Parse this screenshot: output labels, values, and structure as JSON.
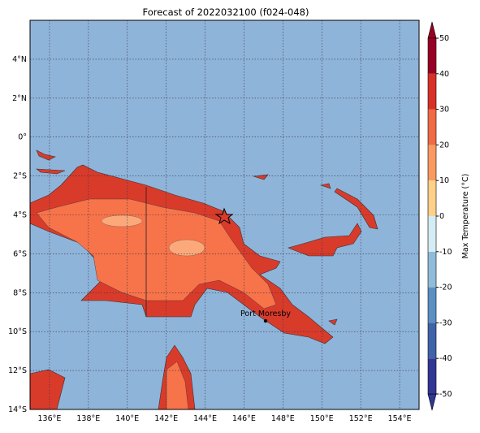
{
  "map": {
    "title": "Forecast of 2022032100 (f024-048)",
    "xlim": [
      135,
      155
    ],
    "ylim": [
      -14,
      6
    ],
    "lon_ticks": [
      {
        "value": 136,
        "label": "136°E"
      },
      {
        "value": 138,
        "label": "138°E"
      },
      {
        "value": 140,
        "label": "140°E"
      },
      {
        "value": 142,
        "label": "142°E"
      },
      {
        "value": 144,
        "label": "144°E"
      },
      {
        "value": 146,
        "label": "146°E"
      },
      {
        "value": 148,
        "label": "148°E"
      },
      {
        "value": 150,
        "label": "150°E"
      },
      {
        "value": 152,
        "label": "152°E"
      },
      {
        "value": 154,
        "label": "154°E"
      }
    ],
    "lat_ticks": [
      {
        "value": 4,
        "label": "4°N"
      },
      {
        "value": 2,
        "label": "2°N"
      },
      {
        "value": 0,
        "label": "0°"
      },
      {
        "value": -2,
        "label": "2°S"
      },
      {
        "value": -4,
        "label": "4°S"
      },
      {
        "value": -6,
        "label": "6°S"
      },
      {
        "value": -8,
        "label": "8°S"
      },
      {
        "value": -10,
        "label": "10°S"
      },
      {
        "value": -12,
        "label": "12°S"
      },
      {
        "value": -14,
        "label": "14°S"
      }
    ],
    "place": "Port Moresby"
  },
  "colorbar": {
    "label": "Max Temperature (°C)",
    "lim": [
      -50,
      50
    ],
    "ticks": [
      50,
      40,
      30,
      20,
      10,
      0,
      -10,
      -20,
      -30,
      -40,
      -50
    ],
    "colors": [
      "#313695",
      "#4063a8",
      "#5b8fc4",
      "#8fbcd9",
      "#d4ecf3",
      "#fffbd0",
      "#fed08a",
      "#f99a60",
      "#ef6a45",
      "#d73027",
      "#990026"
    ]
  }
}
